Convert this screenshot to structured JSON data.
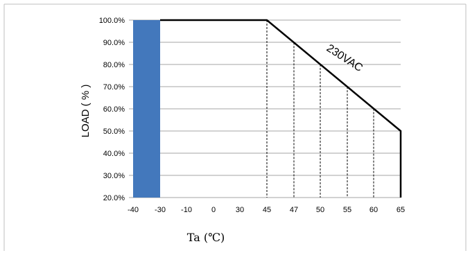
{
  "chart_data": {
    "type": "line",
    "title": "",
    "xlabel": "Ta (℃)",
    "ylabel": "LOAD ( % )",
    "x_ticks": [
      "-40",
      "-30",
      "-10",
      "0",
      "30",
      "45",
      "47",
      "50",
      "55",
      "60",
      "65"
    ],
    "y_ticks": [
      "20.0%",
      "30.0%",
      "40.0%",
      "50.0%",
      "60.0%",
      "70.0%",
      "80.0%",
      "90.0%",
      "100.0%"
    ],
    "ylim": [
      20,
      100
    ],
    "grid": "horizontal",
    "series": [
      {
        "name": "230VAC",
        "color": "#000000",
        "points": [
          {
            "x": "-30",
            "y": 100
          },
          {
            "x": "45",
            "y": 100
          },
          {
            "x": "65",
            "y": 50
          },
          {
            "x": "65",
            "y": 20
          }
        ]
      }
    ],
    "shaded_region": {
      "x_from": "-40",
      "x_to": "-30",
      "y_from": 20,
      "y_to": 100,
      "color": "#4378BC"
    },
    "dashed_verticals": [
      "45",
      "47",
      "50",
      "55",
      "60"
    ]
  }
}
